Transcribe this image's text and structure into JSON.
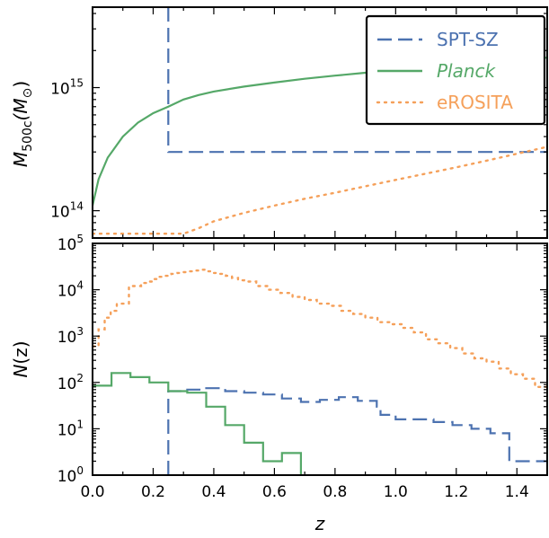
{
  "chart_data": [
    {
      "type": "line",
      "panel": "top",
      "ylabel_main": "M",
      "ylabel_sub": "500c",
      "ylabel_unit_open": "(M",
      "ylabel_unit_sym": "⊙",
      "ylabel_unit_close": ")",
      "xlim": [
        0,
        1.5
      ],
      "ylim": [
        60000000000000,
        4500000000000000
      ],
      "yscale": "log",
      "yticks": [
        {
          "value": 100000000000000,
          "base": "10",
          "exp": "14"
        },
        {
          "value": 1000000000000000,
          "base": "10",
          "exp": "15"
        }
      ],
      "legend": "top-right",
      "series": [
        {
          "name": "SPT-SZ",
          "color": "#4c72b0",
          "style": "dashed",
          "x": [
            0.25,
            0.25,
            1.5
          ],
          "y": [
            4500000000000000,
            300000000000000,
            300000000000000
          ]
        },
        {
          "name": "Planck",
          "name_italic": true,
          "color": "#55a868",
          "style": "solid",
          "x": [
            0.0,
            0.02,
            0.05,
            0.1,
            0.15,
            0.2,
            0.25,
            0.3,
            0.35,
            0.4,
            0.5,
            0.6,
            0.7,
            0.8,
            0.9,
            1.0,
            1.1,
            1.2,
            1.3,
            1.4,
            1.5
          ],
          "y": [
            110000000000000,
            180000000000000,
            270000000000000,
            400000000000000,
            520000000000000,
            620000000000000,
            700000000000000,
            800000000000000,
            870000000000000,
            930000000000000,
            1020000000000000,
            1100000000000000,
            1180000000000000,
            1250000000000000,
            1320000000000000,
            1390000000000000,
            1460000000000000,
            1530000000000000,
            1600000000000000,
            1670000000000000,
            1750000000000000
          ]
        },
        {
          "name": "eROSITA",
          "color": "#f5a05a",
          "style": "dotted",
          "x": [
            0.0,
            0.1,
            0.2,
            0.3,
            0.35,
            0.4,
            0.5,
            0.6,
            0.7,
            0.8,
            0.9,
            1.0,
            1.1,
            1.2,
            1.3,
            1.4,
            1.5
          ],
          "y": [
            65000000000000,
            65000000000000,
            65000000000000,
            65000000000000,
            72000000000000,
            82000000000000,
            96000000000000,
            110000000000000,
            125000000000000,
            140000000000000,
            158000000000000,
            178000000000000,
            200000000000000,
            225000000000000,
            255000000000000,
            290000000000000,
            330000000000000
          ]
        }
      ]
    },
    {
      "type": "line",
      "panel": "bottom",
      "ylabel_main": "N",
      "ylabel_arg": "(z)",
      "xlabel": "z",
      "xlim": [
        0,
        1.5
      ],
      "ylim": [
        1,
        100000
      ],
      "yscale": "log",
      "xticks": [
        "0.0",
        "0.2",
        "0.4",
        "0.6",
        "0.8",
        "1.0",
        "1.2",
        "1.4"
      ],
      "yticks": [
        {
          "value": 1,
          "base": "10",
          "exp": "0"
        },
        {
          "value": 10,
          "base": "10",
          "exp": "1"
        },
        {
          "value": 100,
          "base": "10",
          "exp": "2"
        },
        {
          "value": 1000,
          "base": "10",
          "exp": "3"
        },
        {
          "value": 10000,
          "base": "10",
          "exp": "4"
        },
        {
          "value": 100000,
          "base": "10",
          "exp": "5"
        }
      ],
      "series": [
        {
          "name": "SPT-SZ",
          "color": "#4c72b0",
          "style": "dashed",
          "step": true,
          "x": [
            0.25,
            0.25,
            0.3125,
            0.375,
            0.4375,
            0.5,
            0.5625,
            0.625,
            0.6875,
            0.75,
            0.8125,
            0.875,
            0.9375,
            0.95,
            1.0,
            1.0625,
            1.125,
            1.1875,
            1.25,
            1.3125,
            1.375,
            1.4375,
            1.5
          ],
          "y": [
            1,
            65,
            70,
            75,
            65,
            60,
            55,
            45,
            38,
            42,
            48,
            40,
            30,
            20,
            16,
            16,
            14,
            12,
            10,
            8,
            2,
            2,
            2
          ]
        },
        {
          "name": "Planck",
          "color": "#55a868",
          "style": "solid",
          "step": true,
          "x": [
            0.0,
            0.0625,
            0.125,
            0.1875,
            0.25,
            0.3125,
            0.375,
            0.4375,
            0.5,
            0.5625,
            0.625,
            0.6875,
            0.6875
          ],
          "y": [
            85,
            160,
            130,
            100,
            65,
            60,
            30,
            12,
            5,
            2,
            3,
            1,
            1
          ]
        },
        {
          "name": "eROSITA",
          "color": "#f5a05a",
          "style": "dotted",
          "step": true,
          "x": [
            0.0,
            0.02,
            0.04,
            0.06,
            0.08,
            0.1,
            0.12,
            0.14,
            0.16,
            0.18,
            0.2,
            0.22,
            0.24,
            0.26,
            0.28,
            0.3,
            0.32,
            0.34,
            0.36,
            0.38,
            0.4,
            0.42,
            0.44,
            0.46,
            0.48,
            0.5,
            0.54,
            0.58,
            0.62,
            0.66,
            0.7,
            0.74,
            0.78,
            0.82,
            0.86,
            0.9,
            0.94,
            0.98,
            1.02,
            1.06,
            1.1,
            1.14,
            1.18,
            1.22,
            1.26,
            1.3,
            1.34,
            1.38,
            1.42,
            1.46,
            1.5
          ],
          "y": [
            600,
            1400,
            2500,
            3500,
            5000,
            5000,
            12000,
            12000,
            14000,
            15000,
            17000,
            19000,
            20000,
            22000,
            23000,
            24000,
            25000,
            26000,
            27000,
            25000,
            23000,
            22000,
            20000,
            18000,
            16000,
            15000,
            12000,
            10000,
            8500,
            7000,
            6000,
            5000,
            4500,
            3500,
            3000,
            2500,
            2000,
            1800,
            1500,
            1200,
            850,
            700,
            550,
            420,
            330,
            280,
            200,
            150,
            120,
            80,
            60
          ]
        }
      ]
    }
  ]
}
